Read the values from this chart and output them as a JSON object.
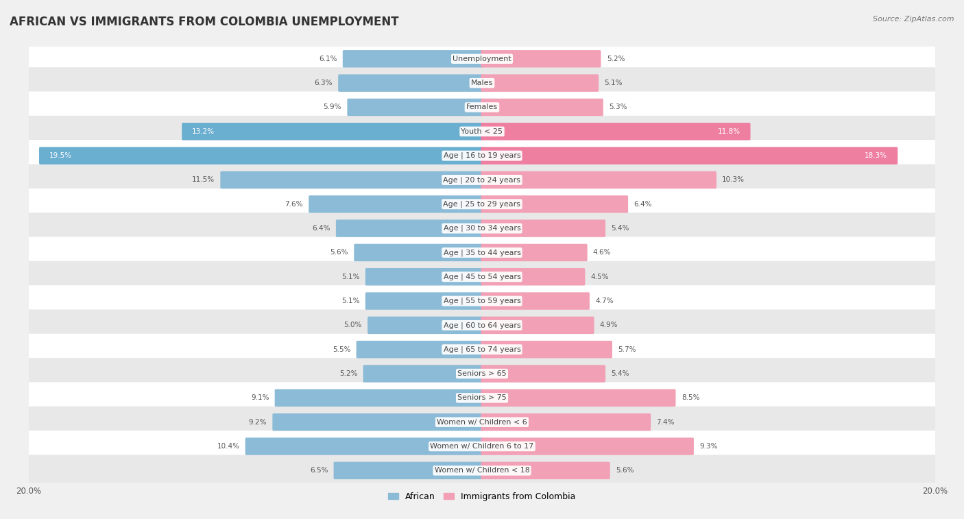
{
  "title": "AFRICAN VS IMMIGRANTS FROM COLOMBIA UNEMPLOYMENT",
  "source": "Source: ZipAtlas.com",
  "categories": [
    "Unemployment",
    "Males",
    "Females",
    "Youth < 25",
    "Age | 16 to 19 years",
    "Age | 20 to 24 years",
    "Age | 25 to 29 years",
    "Age | 30 to 34 years",
    "Age | 35 to 44 years",
    "Age | 45 to 54 years",
    "Age | 55 to 59 years",
    "Age | 60 to 64 years",
    "Age | 65 to 74 years",
    "Seniors > 65",
    "Seniors > 75",
    "Women w/ Children < 6",
    "Women w/ Children 6 to 17",
    "Women w/ Children < 18"
  ],
  "african_values": [
    6.1,
    6.3,
    5.9,
    13.2,
    19.5,
    11.5,
    7.6,
    6.4,
    5.6,
    5.1,
    5.1,
    5.0,
    5.5,
    5.2,
    9.1,
    9.2,
    10.4,
    6.5
  ],
  "colombia_values": [
    5.2,
    5.1,
    5.3,
    11.8,
    18.3,
    10.3,
    6.4,
    5.4,
    4.6,
    4.5,
    4.7,
    4.9,
    5.7,
    5.4,
    8.5,
    7.4,
    9.3,
    5.6
  ],
  "african_color": "#8bbbd6",
  "colombia_color": "#f2a0b5",
  "african_dark_color": "#6aaed0",
  "colombia_dark_color": "#ee7fa0",
  "bar_height": 0.62,
  "xlim": 20.0,
  "bg_color": "#f0f0f0",
  "row_color_light": "#ffffff",
  "row_color_dark": "#e8e8e8",
  "legend_african": "African",
  "legend_colombia": "Immigrants from Colombia",
  "title_fontsize": 12,
  "source_fontsize": 8,
  "category_fontsize": 8,
  "value_fontsize": 7.5
}
